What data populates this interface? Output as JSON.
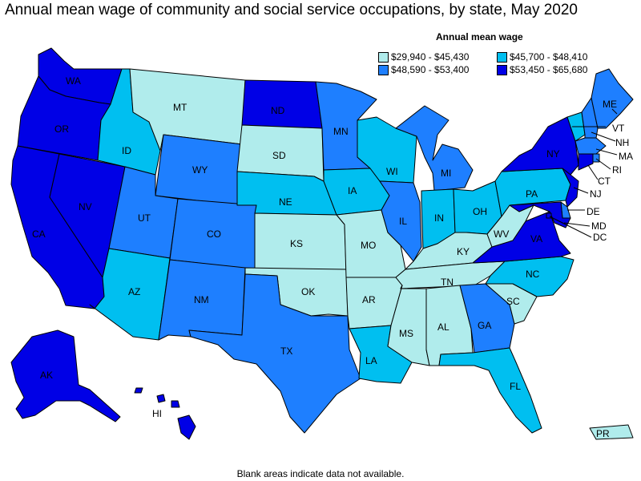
{
  "title": "Annual mean wage of community and social service occupations, by state, May 2020",
  "legend": {
    "title": "Annual mean wage",
    "bins": [
      {
        "label": "$29,940 - $45,430",
        "color": "#b0ecec"
      },
      {
        "label": "$45,700 - $48,410",
        "color": "#00bff0"
      },
      {
        "label": "$48,590 - $53,400",
        "color": "#1e7fff"
      },
      {
        "label": "$53,450 - $65,680",
        "color": "#0000e6"
      }
    ]
  },
  "footnote": "Blank areas indicate data not available.",
  "states": {
    "WA": 3,
    "OR": 3,
    "CA": 3,
    "NV": 3,
    "ID": 1,
    "MT": 0,
    "WY": 2,
    "UT": 2,
    "CO": 2,
    "AZ": 1,
    "NM": 2,
    "ND": 3,
    "SD": 0,
    "NE": 1,
    "KS": 0,
    "OK": 0,
    "TX": 2,
    "MN": 2,
    "IA": 1,
    "MO": 0,
    "AR": 0,
    "LA": 1,
    "WI": 1,
    "IL": 2,
    "MI": 2,
    "IN": 1,
    "OH": 1,
    "KY": 0,
    "TN": 0,
    "MS": 0,
    "AL": 0,
    "GA": 2,
    "FL": 1,
    "SC": 0,
    "NC": 1,
    "VA": 3,
    "WV": 0,
    "PA": 1,
    "NY": 3,
    "VT": 1,
    "NH": 2,
    "ME": 2,
    "MA": 2,
    "RI": 2,
    "CT": 3,
    "NJ": 3,
    "DE": 2,
    "MD": 3,
    "DC": 3,
    "AK": 3,
    "HI": 3,
    "PR": 0
  },
  "labels": {
    "WA": "WA",
    "OR": "OR",
    "CA": "CA",
    "NV": "NV",
    "ID": "ID",
    "MT": "MT",
    "WY": "WY",
    "UT": "UT",
    "CO": "CO",
    "AZ": "AZ",
    "NM": "NM",
    "ND": "ND",
    "SD": "SD",
    "NE": "NE",
    "KS": "KS",
    "OK": "OK",
    "TX": "TX",
    "MN": "MN",
    "IA": "IA",
    "MO": "MO",
    "AR": "AR",
    "LA": "LA",
    "WI": "WI",
    "IL": "IL",
    "MI": "MI",
    "IN": "IN",
    "OH": "OH",
    "KY": "KY",
    "TN": "TN",
    "MS": "MS",
    "AL": "AL",
    "GA": "GA",
    "FL": "FL",
    "SC": "SC",
    "NC": "NC",
    "VA": "VA",
    "WV": "WV",
    "PA": "PA",
    "NY": "NY",
    "VT": "VT",
    "NH": "NH",
    "ME": "ME",
    "MA": "MA",
    "RI": "RI",
    "CT": "CT",
    "NJ": "NJ",
    "DE": "DE",
    "MD": "MD",
    "DC": "DC",
    "AK": "AK",
    "HI": "HI",
    "PR": "PR"
  }
}
